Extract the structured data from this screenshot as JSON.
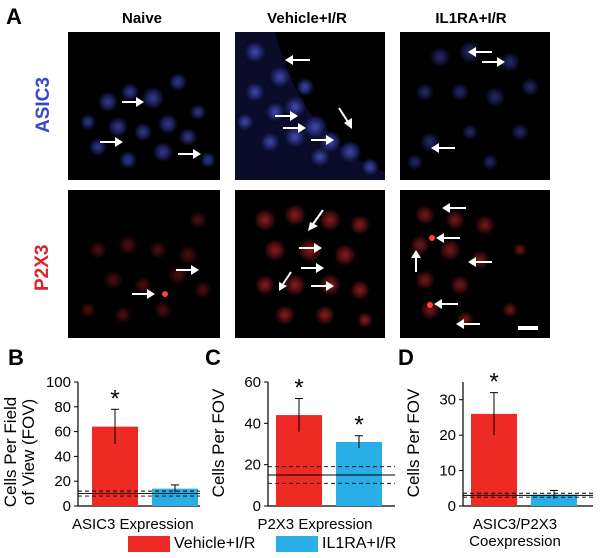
{
  "figure": {
    "panel_a_letter": "A",
    "columns": [
      "Naive",
      "Vehicle+I/R",
      "IL1RA+I/R"
    ],
    "rows": [
      {
        "label": "ASIC3",
        "color": "#3a48c8"
      },
      {
        "label": "P2X3",
        "color": "#e0222a"
      }
    ]
  },
  "colors": {
    "vehicle": "#ee2a24",
    "il1ra": "#29aee5"
  },
  "legend": [
    {
      "label": "Vehicle+I/R",
      "color": "#ee2a24"
    },
    {
      "label": "IL1RA+I/R",
      "color": "#29aee5"
    }
  ],
  "chart_data": [
    {
      "type": "bar",
      "panel": "B",
      "xlabel": "ASIC3 Expression",
      "ylabel_line1": "Cells Per Field",
      "ylabel_line2": "of View (FOV)",
      "ylim": [
        0,
        100
      ],
      "yticks": [
        "0",
        "20",
        "40",
        "60",
        "80",
        "100"
      ],
      "ytick_values": [
        0,
        20,
        40,
        60,
        80,
        100
      ],
      "categories": [
        "Vehicle+I/R",
        "IL1RA+I/R"
      ],
      "values": [
        64,
        14
      ],
      "errors": [
        14,
        3
      ],
      "significance": [
        "*",
        ""
      ],
      "naive_band": [
        8,
        10,
        12
      ]
    },
    {
      "type": "bar",
      "panel": "C",
      "xlabel": "P2X3 Expression",
      "ylabel_line1": "Cells Per FOV",
      "ylabel_line2": "",
      "ylim": [
        0,
        60
      ],
      "yticks": [
        "0",
        "20",
        "40",
        "60"
      ],
      "ytick_values": [
        0,
        20,
        40,
        60
      ],
      "categories": [
        "Vehicle+I/R",
        "IL1RA+I/R"
      ],
      "values": [
        44,
        31
      ],
      "errors": [
        8,
        3
      ],
      "significance": [
        "*",
        "*"
      ],
      "naive_band": [
        11,
        15,
        19
      ]
    },
    {
      "type": "bar",
      "panel": "D",
      "xlabel": "ASIC3/P2X3",
      "xlabel2": "Coexpression",
      "ylabel_line1": "Cells Per FOV",
      "ylabel_line2": "",
      "ylim": [
        0,
        35
      ],
      "yticks": [
        "0",
        "10",
        "20",
        "30"
      ],
      "ytick_values": [
        0,
        10,
        20,
        30
      ],
      "categories": [
        "Vehicle+I/R",
        "IL1RA+I/R"
      ],
      "values": [
        26,
        3.2
      ],
      "errors": [
        6,
        1.2
      ],
      "significance": [
        "*",
        ""
      ],
      "naive_band": [
        2.5,
        3.0,
        3.6
      ]
    }
  ]
}
